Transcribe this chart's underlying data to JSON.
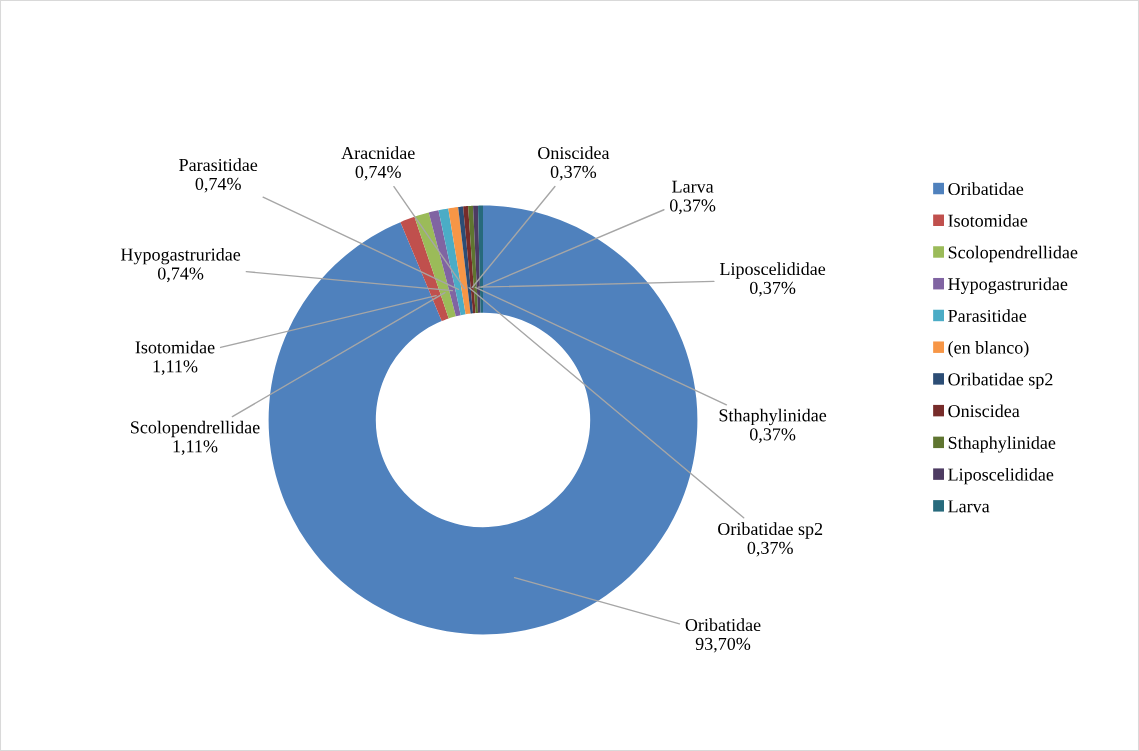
{
  "chart_data": {
    "type": "donut",
    "categories": [
      "Oribatidae",
      "Isotomidae",
      "Scolopendrellidae",
      "Hypogastruridae",
      "Parasitidae",
      "(en blanco)",
      "Oribatidae sp2",
      "Oniscidea",
      "Sthaphylinidae",
      "Liposcelididae",
      "Larva"
    ],
    "values": [
      93.7,
      1.11,
      1.11,
      0.74,
      0.74,
      0.74,
      0.37,
      0.37,
      0.37,
      0.37,
      0.37
    ],
    "colors": [
      "#4f81bd",
      "#c0504d",
      "#9bbb59",
      "#8064a2",
      "#4bacc6",
      "#f79646",
      "#2c4d75",
      "#772c2a",
      "#5f7530",
      "#4d3b62",
      "#276a7c"
    ],
    "value_labels": [
      "Oribatidae\n93,70%",
      "Isotomidae\n1,11%",
      "Scolopendrellidae\n1,11%",
      "Hypogastruridae\n0,74%",
      "Parasitidae\n0,74%",
      "Aracnidae\n0,74%",
      "Oribatidae sp2\n0,37%",
      "Oniscidea\n0,37%",
      "Sthaphylinidae\n0,37%",
      "Liposcelididae\n0,37%",
      "Larva\n0,37%"
    ],
    "legend": "right"
  }
}
